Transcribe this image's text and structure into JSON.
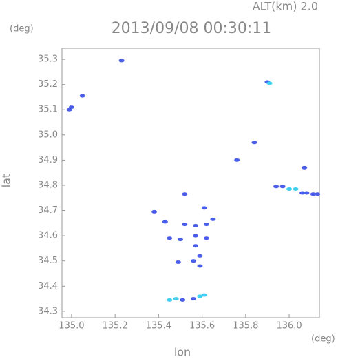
{
  "chart_data": {
    "type": "scatter",
    "title": "2013/09/08 00:30:11",
    "subtitle": "ALT(km) 2.0",
    "x_label": "lon",
    "y_label": "lat",
    "x_unit": "(deg)",
    "y_unit": "(deg)",
    "xlim": [
      134.956,
      136.139
    ],
    "ylim": [
      34.275,
      35.344
    ],
    "xticks": [
      {
        "value": 135.0,
        "label": "135.0"
      },
      135.2,
      135.4,
      135.6,
      135.8,
      {
        "value": 136.0,
        "label": "136.0"
      }
    ],
    "yticks": [
      34.3,
      34.4,
      34.5,
      34.6,
      34.7,
      34.8,
      34.9,
      {
        "value": 35.0,
        "label": "35.0"
      },
      35.1,
      35.2,
      35.3
    ],
    "series": [
      {
        "color": "#4a5ee8",
        "x": [
          134.99,
          135.0,
          135.05,
          135.23,
          135.9,
          135.76,
          135.84,
          136.07,
          135.94,
          135.97,
          136.06,
          136.08,
          136.11,
          136.13,
          135.51,
          135.56,
          135.52,
          135.38,
          135.43,
          135.52,
          135.57,
          135.62,
          135.65,
          135.45,
          135.5,
          135.57,
          135.57,
          135.59,
          135.56,
          135.59,
          135.49,
          135.62,
          135.61
        ],
        "y": [
          35.1,
          35.11,
          35.155,
          35.295,
          35.21,
          34.9,
          34.97,
          34.87,
          34.795,
          34.795,
          34.77,
          34.77,
          34.765,
          34.765,
          34.345,
          34.35,
          34.765,
          34.695,
          34.655,
          34.645,
          34.64,
          34.645,
          34.665,
          34.59,
          34.585,
          34.6,
          34.56,
          34.52,
          34.5,
          34.48,
          34.495,
          34.59,
          34.71
        ]
      },
      {
        "color": "#40d0f0",
        "x": [
          135.91,
          136.0,
          136.03,
          135.45,
          135.48,
          135.59,
          135.61
        ],
        "y": [
          35.205,
          34.785,
          34.785,
          34.345,
          34.35,
          34.36,
          34.365
        ]
      }
    ]
  }
}
